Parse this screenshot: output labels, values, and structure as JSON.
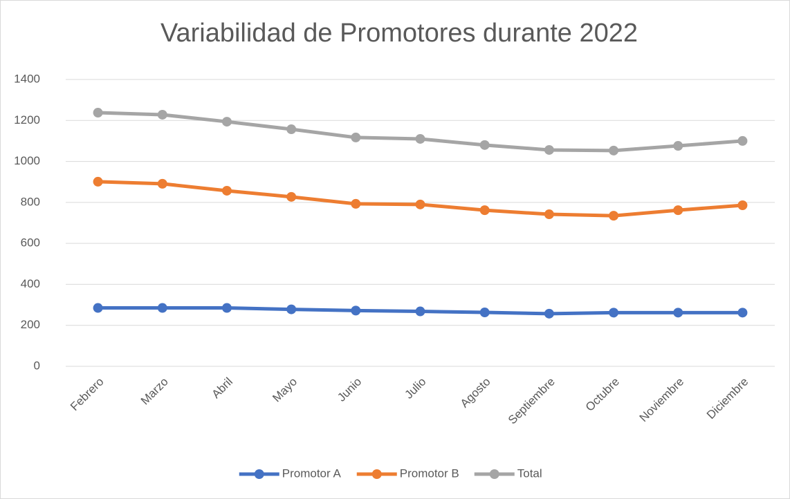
{
  "chart_data": {
    "type": "line",
    "title": "Variabilidad de Promotores durante 2022",
    "categories": [
      "Febrero",
      "Marzo",
      "Abril",
      "Mayo",
      "Junio",
      "Julio",
      "Agosto",
      "Septiembre",
      "Octubre",
      "Noviembre",
      "Diciembre"
    ],
    "series": [
      {
        "name": "Promotor A",
        "color": "#4472c4",
        "values": [
          285,
          285,
          285,
          278,
          272,
          268,
          263,
          257,
          262,
          262,
          262
        ]
      },
      {
        "name": "Promotor B",
        "color": "#ed7d31",
        "values": [
          901,
          891,
          857,
          827,
          793,
          790,
          762,
          742,
          735,
          762,
          786
        ]
      },
      {
        "name": "Total",
        "color": "#a5a5a5",
        "values": [
          1238,
          1228,
          1194,
          1157,
          1117,
          1110,
          1080,
          1056,
          1053,
          1076,
          1100
        ]
      }
    ],
    "ylim": [
      0,
      1400
    ],
    "yticks": [
      0,
      200,
      400,
      600,
      800,
      1000,
      1200,
      1400
    ],
    "grid": true,
    "legend": "bottom"
  }
}
